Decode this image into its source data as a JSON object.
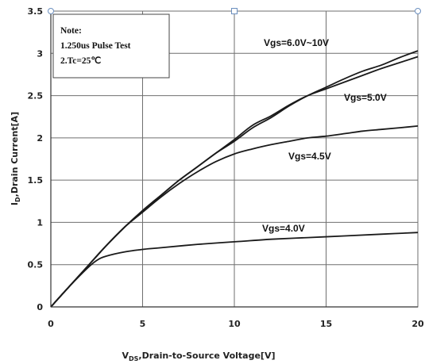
{
  "chart_data": {
    "type": "line",
    "xlabel_main": "V",
    "xlabel_sub": "DS",
    "xlabel_rest": ",Drain-to-Source Voltage[V]",
    "ylabel_main": "I",
    "ylabel_sub": "D",
    "ylabel_rest": ",Drain Current[A]",
    "xlim": [
      0,
      20
    ],
    "ylim": [
      0,
      3.5
    ],
    "xticks": [
      "0",
      "5",
      "10",
      "15",
      "20"
    ],
    "yticks": [
      "0",
      "0.5",
      "1",
      "1.5",
      "2",
      "2.5",
      "3",
      "3.5"
    ],
    "grid": true,
    "note": {
      "title": "Note:",
      "line1": "1.250us Pulse Test",
      "line2": "2.Tc=25℃"
    },
    "series": [
      {
        "name": "Vgs=6.0V~10V",
        "x": [
          0,
          1,
          2,
          3,
          4,
          5,
          6,
          7,
          8,
          9,
          10,
          11,
          12,
          13,
          14,
          15,
          16,
          17,
          18,
          19,
          20
        ],
        "y": [
          0,
          0.24,
          0.48,
          0.72,
          0.94,
          1.14,
          1.32,
          1.5,
          1.66,
          1.82,
          1.96,
          2.12,
          2.24,
          2.38,
          2.5,
          2.6,
          2.7,
          2.79,
          2.86,
          2.95,
          3.03
        ]
      },
      {
        "name": "Vgs=5.0V",
        "x": [
          0,
          1,
          2,
          3,
          4,
          5,
          6,
          7,
          8,
          9,
          10,
          11,
          12,
          13,
          14,
          15,
          16,
          17,
          18,
          19,
          20
        ],
        "y": [
          0,
          0.24,
          0.48,
          0.72,
          0.94,
          1.14,
          1.32,
          1.5,
          1.66,
          1.82,
          1.98,
          2.15,
          2.26,
          2.39,
          2.5,
          2.58,
          2.66,
          2.74,
          2.82,
          2.89,
          2.96
        ]
      },
      {
        "name": "Vgs=4.5V",
        "x": [
          0,
          1,
          2,
          3,
          4,
          5,
          6,
          7,
          8,
          9,
          10,
          11,
          12,
          13,
          14,
          15,
          16,
          17,
          18,
          19,
          20
        ],
        "y": [
          0,
          0.24,
          0.48,
          0.72,
          0.94,
          1.12,
          1.3,
          1.46,
          1.6,
          1.72,
          1.81,
          1.87,
          1.92,
          1.96,
          2.0,
          2.02,
          2.05,
          2.08,
          2.1,
          2.12,
          2.14
        ]
      },
      {
        "name": "Vgs=4.0V",
        "x": [
          0,
          1,
          2,
          2.5,
          3,
          4,
          5,
          6,
          8,
          10,
          12,
          14,
          16,
          18,
          20
        ],
        "y": [
          0,
          0.24,
          0.46,
          0.55,
          0.6,
          0.65,
          0.68,
          0.7,
          0.74,
          0.77,
          0.8,
          0.82,
          0.84,
          0.86,
          0.88
        ]
      }
    ]
  }
}
